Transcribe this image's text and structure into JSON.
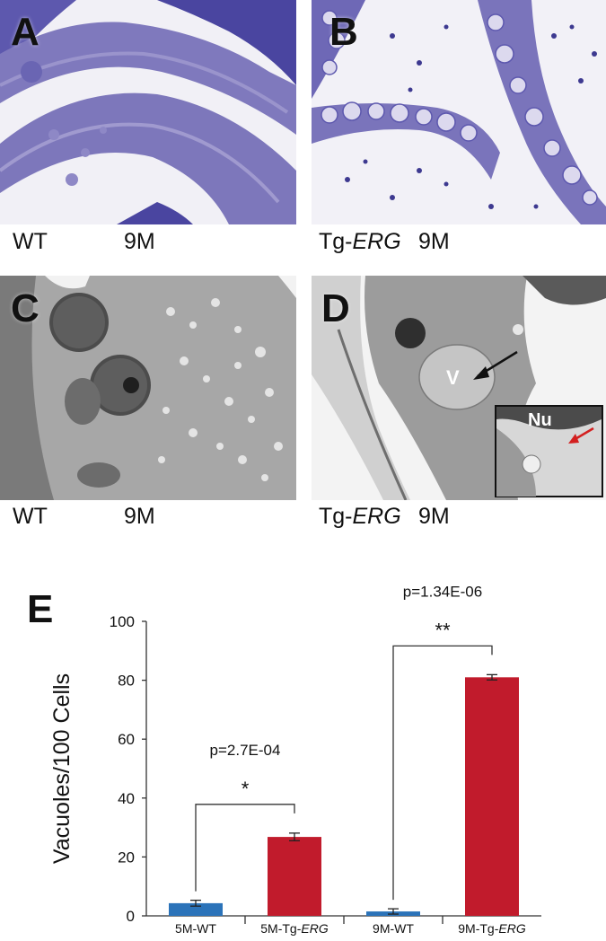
{
  "panels": [
    {
      "letter": "A",
      "genotype": "WT",
      "genotype_prefix": "",
      "genotype_italic": "",
      "age": "9M"
    },
    {
      "letter": "B",
      "genotype": "",
      "genotype_prefix": "Tg-",
      "genotype_italic": "ERG",
      "age": "9M"
    },
    {
      "letter": "C",
      "genotype": "WT",
      "genotype_prefix": "",
      "genotype_italic": "",
      "age": "9M"
    },
    {
      "letter": "D",
      "genotype": "",
      "genotype_prefix": "Tg-",
      "genotype_italic": "ERG",
      "age": "9M",
      "labels": {
        "vacuole": "V",
        "nucleus": "Nu"
      }
    }
  ],
  "colors": {
    "wt_bar": "#2b73b9",
    "tg_bar": "#c11b2c",
    "stain": "#5a54a8",
    "em_gray": "#8c8c8c"
  },
  "chart_data": {
    "type": "bar",
    "panel_letter": "E",
    "ylabel": "Vacuoles/100 Cells",
    "ylim": [
      0,
      100
    ],
    "yticks": [
      0,
      20,
      40,
      60,
      80,
      100
    ],
    "categories": [
      {
        "prefix": "5M-WT",
        "italic": ""
      },
      {
        "prefix": "5M-Tg-",
        "italic": "ERG"
      },
      {
        "prefix": "9M-WT",
        "italic": ""
      },
      {
        "prefix": "9M-Tg-",
        "italic": "ERG"
      }
    ],
    "values": [
      4.3,
      26.8,
      1.5,
      81.0
    ],
    "errors": [
      1.0,
      1.3,
      0.9,
      0.9
    ],
    "bar_colors": [
      "#2b73b9",
      "#c11b2c",
      "#2b73b9",
      "#c11b2c"
    ],
    "comparisons": [
      {
        "from": 0,
        "to": 1,
        "p_label": "p=2.7E-04",
        "stars": "*"
      },
      {
        "from": 2,
        "to": 3,
        "p_label": "p=1.34E-06",
        "stars": "**"
      }
    ]
  }
}
